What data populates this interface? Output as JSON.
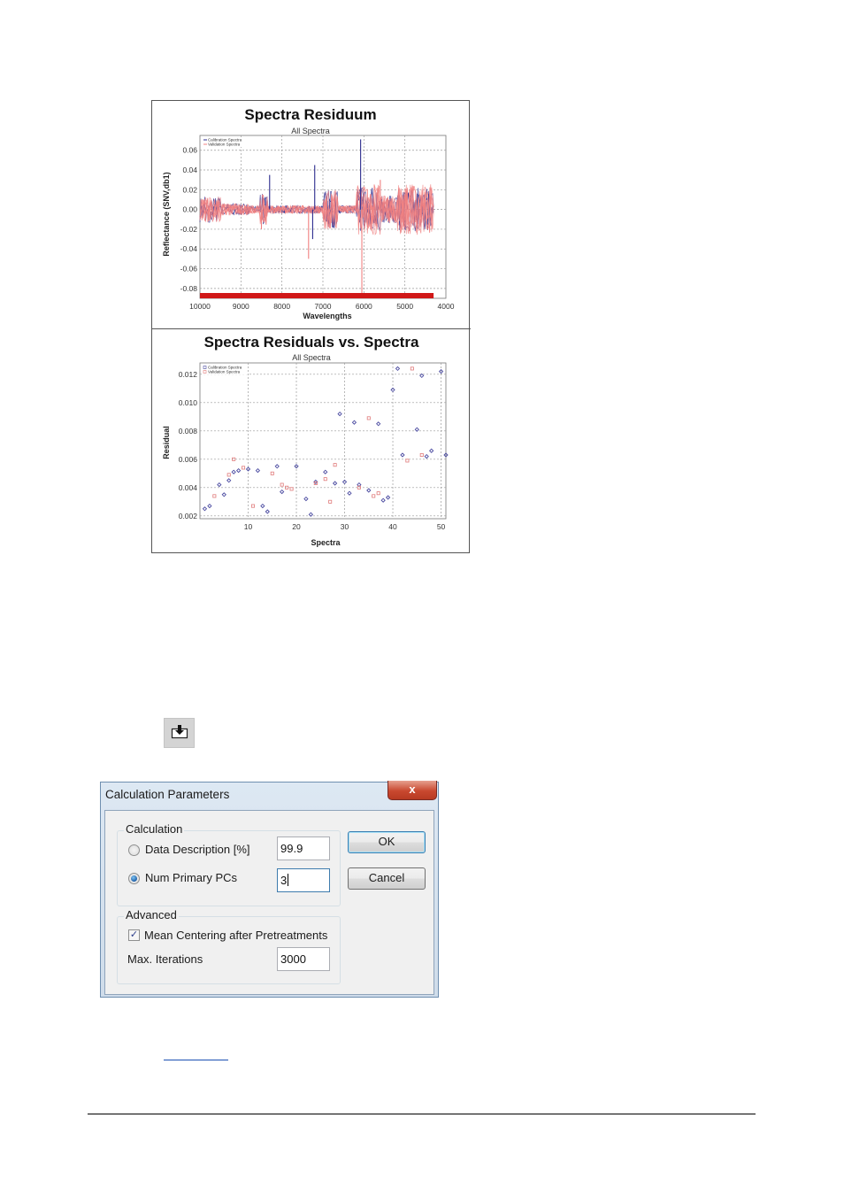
{
  "chart_data": [
    {
      "type": "line",
      "title": "Spectra Residuum",
      "subtitle": "All Spectra",
      "xlabel": "Wavelengths",
      "ylabel": "Reflectance (SNV,db1)",
      "x_ticks": [
        10000,
        9000,
        8000,
        7000,
        6000,
        5000,
        4000
      ],
      "y_ticks": [
        "0.06",
        "0.04",
        "0.02",
        "0.00",
        "-0.02",
        "-0.04",
        "-0.06",
        "-0.08"
      ],
      "xlim": [
        10000,
        4000
      ],
      "ylim": [
        -0.09,
        0.075
      ],
      "legend": [
        "Calibration Spectra",
        "Validation Spectra"
      ],
      "legend_position": "top-left",
      "grid": true,
      "colors": {
        "calibration": "#2b2b8e",
        "validation": "#f08080",
        "marker_bar": "#d01818"
      }
    },
    {
      "type": "scatter",
      "title": "Spectra Residuals vs. Spectra",
      "subtitle": "All Spectra",
      "xlabel": "Spectra",
      "ylabel": "Residual",
      "x_ticks": [
        10,
        20,
        30,
        40,
        50
      ],
      "y_ticks": [
        "0.012",
        "0.010",
        "0.008",
        "0.006",
        "0.004",
        "0.002"
      ],
      "xlim": [
        0,
        51
      ],
      "ylim": [
        0.0018,
        0.0128
      ],
      "legend": [
        "Calibration Spectra",
        "Validation Spectra"
      ],
      "legend_position": "top-left",
      "grid": true,
      "colors": {
        "calibration": "#4a4aa0",
        "validation": "#e07a7a"
      },
      "series": [
        {
          "name": "Calibration Spectra",
          "marker": "diamond",
          "points": [
            [
              1,
              0.0025
            ],
            [
              2,
              0.0027
            ],
            [
              4,
              0.0042
            ],
            [
              5,
              0.0035
            ],
            [
              6,
              0.0045
            ],
            [
              7,
              0.0051
            ],
            [
              8,
              0.0052
            ],
            [
              10,
              0.0053
            ],
            [
              12,
              0.0052
            ],
            [
              13,
              0.0027
            ],
            [
              14,
              0.0023
            ],
            [
              16,
              0.0055
            ],
            [
              17,
              0.0037
            ],
            [
              20,
              0.0055
            ],
            [
              22,
              0.0032
            ],
            [
              23,
              0.0021
            ],
            [
              24,
              0.0044
            ],
            [
              26,
              0.0051
            ],
            [
              28,
              0.0043
            ],
            [
              29,
              0.0092
            ],
            [
              30,
              0.0044
            ],
            [
              31,
              0.0036
            ],
            [
              32,
              0.0086
            ],
            [
              33,
              0.0042
            ],
            [
              35,
              0.0038
            ],
            [
              37,
              0.0085
            ],
            [
              38,
              0.0031
            ],
            [
              39,
              0.0033
            ],
            [
              40,
              0.0109
            ],
            [
              41,
              0.0124
            ],
            [
              42,
              0.0063
            ],
            [
              45,
              0.0081
            ],
            [
              46,
              0.0119
            ],
            [
              47,
              0.0062
            ],
            [
              48,
              0.0066
            ],
            [
              50,
              0.0122
            ],
            [
              51,
              0.0063
            ]
          ]
        },
        {
          "name": "Validation Spectra",
          "marker": "square",
          "points": [
            [
              3,
              0.0034
            ],
            [
              6,
              0.0049
            ],
            [
              7,
              0.006
            ],
            [
              9,
              0.0054
            ],
            [
              11,
              0.0027
            ],
            [
              15,
              0.005
            ],
            [
              17,
              0.0042
            ],
            [
              18,
              0.004
            ],
            [
              19,
              0.0039
            ],
            [
              24,
              0.0043
            ],
            [
              26,
              0.0046
            ],
            [
              27,
              0.003
            ],
            [
              28,
              0.0056
            ],
            [
              33,
              0.004
            ],
            [
              35,
              0.0089
            ],
            [
              36,
              0.0034
            ],
            [
              37,
              0.0036
            ],
            [
              43,
              0.0059
            ],
            [
              44,
              0.0124
            ],
            [
              46,
              0.0063
            ]
          ]
        }
      ]
    }
  ],
  "dialog": {
    "title": "Calculation Parameters",
    "close_glyph": "x",
    "calculation_group": "Calculation",
    "data_description_label": "Data Description [%]",
    "data_description_value": "99.9",
    "num_primary_pcs_label": "Num Primary PCs",
    "num_primary_pcs_value": "3",
    "selected_option": "Num Primary PCs",
    "ok_label": "OK",
    "cancel_label": "Cancel",
    "advanced_group": "Advanced",
    "mean_centering_label": "Mean Centering after Pretreatments",
    "mean_centering_checked": true,
    "max_iterations_label": "Max. Iterations",
    "max_iterations_value": "3000"
  },
  "toolbar": {
    "export_icon": "download-arrow-icon"
  }
}
